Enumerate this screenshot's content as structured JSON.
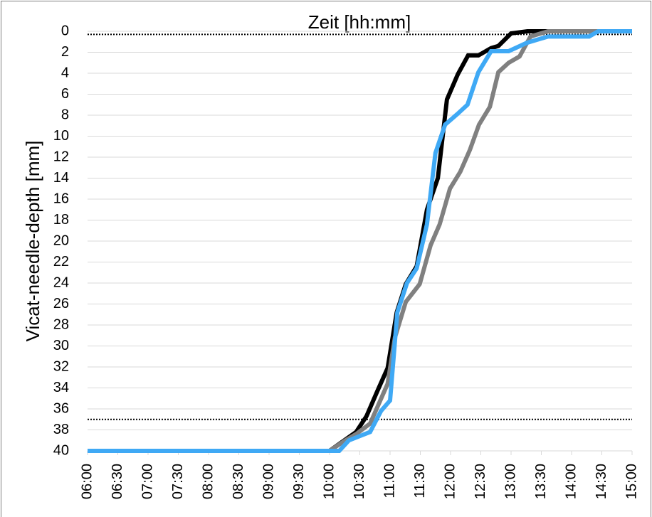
{
  "chart_data": {
    "type": "line",
    "title": "Zeit [hh:mm]",
    "y_label": "Vicat-needle-depth [mm]",
    "xlim": [
      6,
      15
    ],
    "xticks": [
      {
        "value": 6,
        "label": "06:00"
      },
      {
        "value": 6.5,
        "label": "06:30"
      },
      {
        "value": 7,
        "label": "07:00"
      },
      {
        "value": 7.5,
        "label": "07:30"
      },
      {
        "value": 8,
        "label": "08:00"
      },
      {
        "value": 8.5,
        "label": "08:30"
      },
      {
        "value": 9,
        "label": "09:00"
      },
      {
        "value": 9.5,
        "label": "09:30"
      },
      {
        "value": 10,
        "label": "10:00"
      },
      {
        "value": 10.5,
        "label": "10:30"
      },
      {
        "value": 11,
        "label": "11:00"
      },
      {
        "value": 11.5,
        "label": "11:30"
      },
      {
        "value": 12,
        "label": "12:00"
      },
      {
        "value": 12.5,
        "label": "12:30"
      },
      {
        "value": 13,
        "label": "13:00"
      },
      {
        "value": 13.5,
        "label": "13:30"
      },
      {
        "value": 14,
        "label": "14:00"
      },
      {
        "value": 14.5,
        "label": "14:30"
      },
      {
        "value": 15,
        "label": "15:00"
      }
    ],
    "ylim": [
      0,
      40
    ],
    "y_inverted": true,
    "yticks": [
      0,
      2,
      4,
      6,
      8,
      10,
      12,
      14,
      16,
      18,
      20,
      22,
      24,
      26,
      28,
      30,
      32,
      34,
      36,
      38,
      40
    ],
    "grid": true,
    "reference_lines": [
      0.3,
      37
    ],
    "series": [
      {
        "color": "#000000",
        "x": [
          6,
          10,
          10.44,
          10.61,
          10.79,
          10.96,
          11.11,
          11.26,
          11.44,
          11.61,
          11.79,
          11.94,
          12.12,
          12.29,
          12.46,
          12.67,
          12.79,
          13.0,
          13.27,
          15
        ],
        "values": [
          40,
          40,
          38.2,
          36.7,
          34.3,
          32.1,
          26.8,
          24.1,
          22.4,
          17,
          14,
          6.5,
          4.1,
          2.3,
          2.3,
          1.6,
          1.4,
          0.2,
          0,
          0
        ]
      },
      {
        "color": "#808080",
        "x": [
          6,
          10,
          10.26,
          10.44,
          10.67,
          10.96,
          11.08,
          11.26,
          11.49,
          11.67,
          11.82,
          11.99,
          12.16,
          12.32,
          12.47,
          12.65,
          12.79,
          12.96,
          13.14,
          13.32,
          13.61,
          15
        ],
        "values": [
          40,
          40,
          39,
          38.4,
          37.4,
          33.6,
          29.2,
          25.8,
          24.1,
          20.4,
          18.4,
          15,
          13.4,
          11.3,
          8.9,
          7.2,
          3.9,
          3,
          2.4,
          0.5,
          0,
          0
        ]
      },
      {
        "color": "#3fa9f5",
        "x": [
          6,
          10.16,
          10.32,
          10.67,
          10.85,
          11.0,
          11.12,
          11.28,
          11.44,
          11.61,
          11.75,
          11.91,
          12.11,
          12.28,
          12.46,
          12.67,
          12.96,
          13.26,
          13.61,
          14.29,
          14.44,
          15
        ],
        "values": [
          40,
          40,
          39,
          38.2,
          36.2,
          35.2,
          26.8,
          24,
          22.6,
          18.4,
          11.6,
          8.9,
          7.9,
          7,
          3.9,
          1.9,
          1.9,
          1.1,
          0.5,
          0.5,
          0,
          0
        ]
      }
    ]
  }
}
